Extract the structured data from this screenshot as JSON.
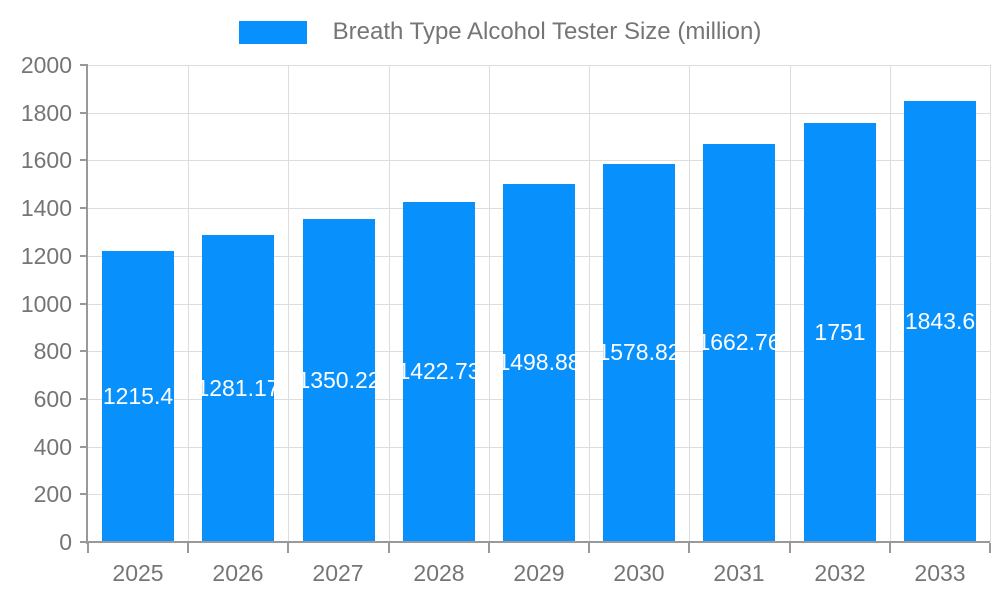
{
  "legend": {
    "label": "Breath Type Alcohol Tester Size (million)"
  },
  "chart_data": {
    "type": "bar",
    "title": "Breath Type Alcohol Tester Size (million)",
    "categories": [
      "2025",
      "2026",
      "2027",
      "2028",
      "2029",
      "2030",
      "2031",
      "2032",
      "2033"
    ],
    "series": [
      {
        "name": "Breath Type Alcohol Tester Size (million)",
        "values": [
          1215.4,
          1281.17,
          1350.22,
          1422.73,
          1498.88,
          1578.82,
          1662.76,
          1751,
          1843.6
        ]
      }
    ],
    "value_labels": [
      "1215.4",
      "1281.17",
      "1350.22",
      "1422.73",
      "1498.88",
      "1578.82",
      "1662.76",
      "1751",
      "1843.6"
    ],
    "xlabel": "",
    "ylabel": "",
    "ylim": [
      0,
      2000
    ],
    "ytick_step": 200,
    "ytick_labels": [
      "0",
      "200",
      "400",
      "600",
      "800",
      "1000",
      "1200",
      "1400",
      "1600",
      "1800",
      "2000"
    ],
    "grid": true,
    "legend_position": "top-center",
    "value_label_position": "inside-center"
  },
  "colors": {
    "bar": "#0890FC",
    "grid": "#DDDDDD",
    "axis": "#999999",
    "axis_text": "#757575",
    "value_label_text": "#FFFFFF",
    "background": "#FFFFFF"
  }
}
